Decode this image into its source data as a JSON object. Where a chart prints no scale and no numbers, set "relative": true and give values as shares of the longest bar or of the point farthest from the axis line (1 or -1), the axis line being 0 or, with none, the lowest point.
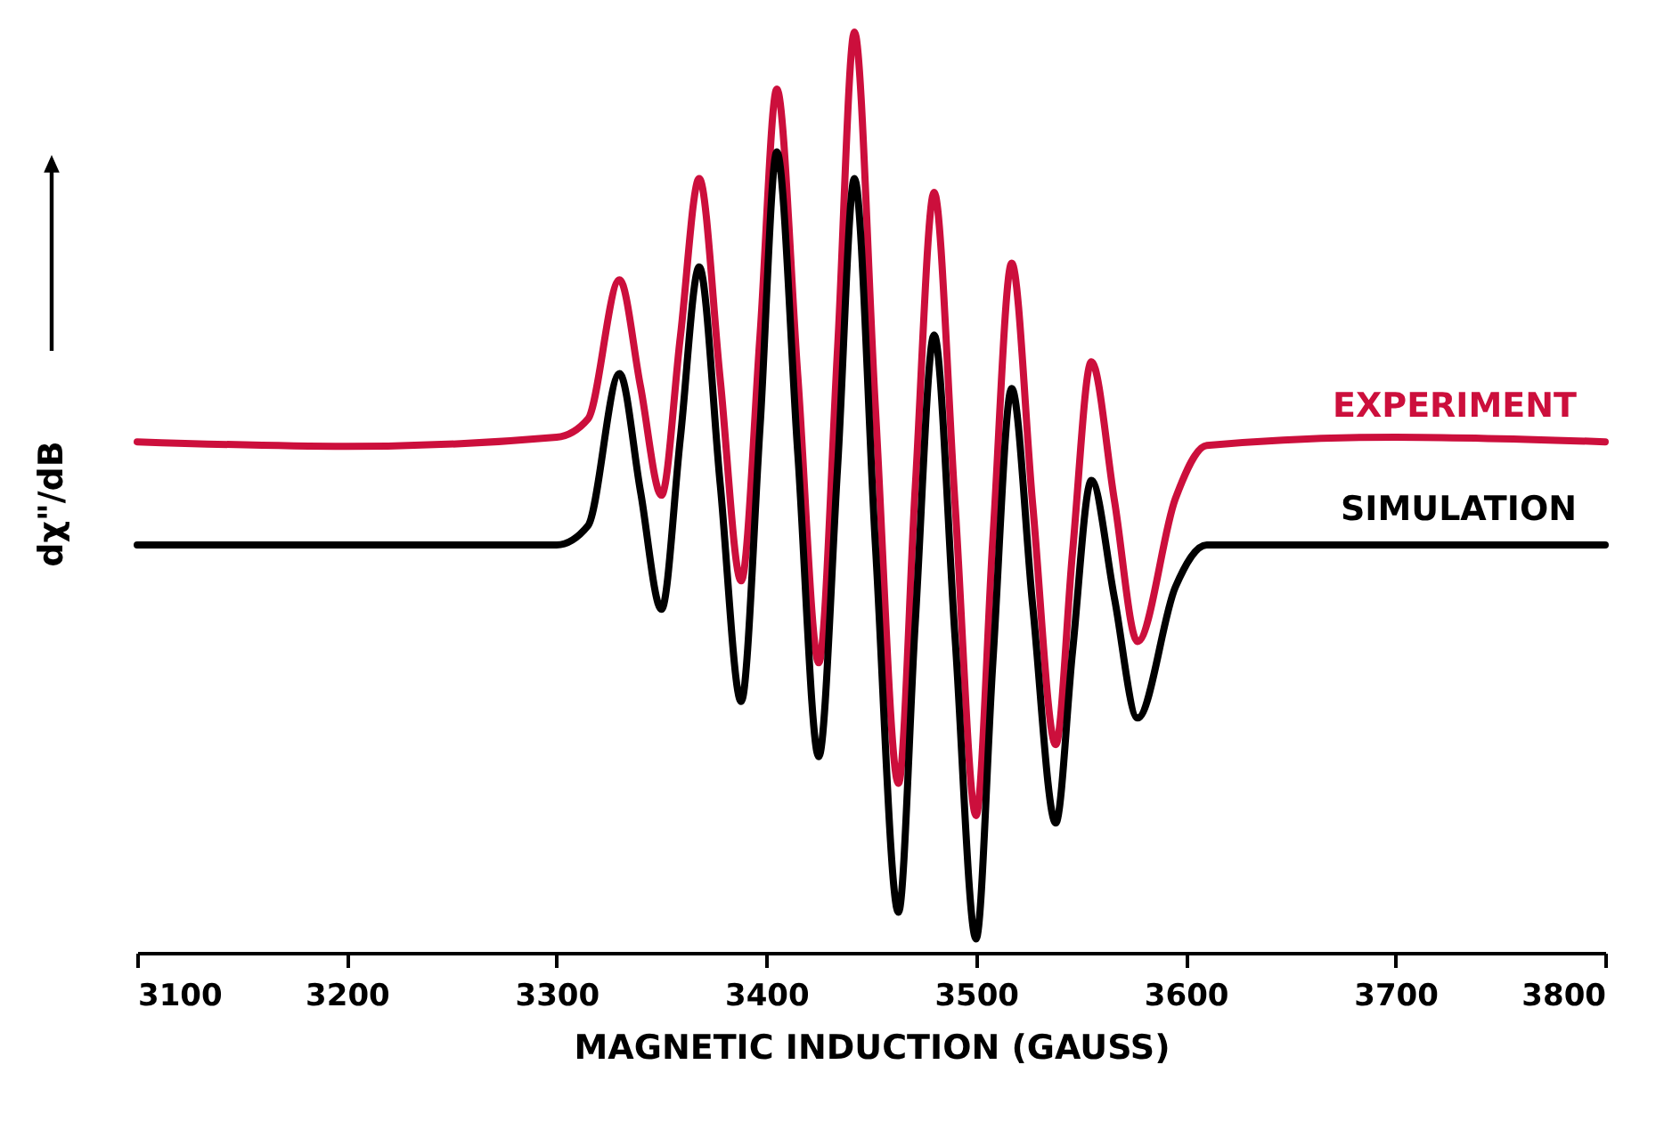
{
  "chart_data": {
    "type": "line",
    "xlabel": "MAGNETIC INDUCTION (GAUSS)",
    "ylabel": "dχ\"/dB",
    "x": [
      3100,
      3200,
      3300,
      3315,
      3330,
      3340,
      3350,
      3359,
      3368,
      3378,
      3388,
      3397,
      3405,
      3415,
      3425,
      3434,
      3442,
      3452,
      3463,
      3471,
      3480,
      3490,
      3500,
      3508,
      3517,
      3527,
      3538,
      3546,
      3555,
      3566,
      3577,
      3595,
      3610,
      3700,
      3800
    ],
    "series": [
      {
        "name": "EXPERIMENT",
        "color": "#cc0f3c",
        "values": [
          0.555,
          0.55,
          0.56,
          0.58,
          0.731,
          0.615,
          0.497,
          0.669,
          0.841,
          0.623,
          0.404,
          0.671,
          0.938,
          0.627,
          0.315,
          0.658,
          1.0,
          0.592,
          0.184,
          0.505,
          0.826,
          0.487,
          0.149,
          0.449,
          0.749,
          0.487,
          0.226,
          0.435,
          0.642,
          0.491,
          0.338,
          0.493,
          0.551,
          0.56,
          0.555
        ]
      },
      {
        "name": "SIMULATION",
        "color": "#000000",
        "values": [
          0.443,
          0.443,
          0.443,
          0.464,
          0.629,
          0.501,
          0.373,
          0.559,
          0.745,
          0.509,
          0.273,
          0.571,
          0.87,
          0.542,
          0.213,
          0.528,
          0.841,
          0.443,
          0.044,
          0.358,
          0.671,
          0.342,
          0.015,
          0.315,
          0.613,
          0.377,
          0.141,
          0.327,
          0.513,
          0.385,
          0.255,
          0.397,
          0.443,
          0.443,
          0.443
        ]
      }
    ],
    "relative": true,
    "xlim": [
      3100,
      3800
    ],
    "xticks": [
      3100,
      3200,
      3300,
      3400,
      3500,
      3600,
      3700,
      3800
    ],
    "line_style": "solid",
    "marker": "none"
  }
}
